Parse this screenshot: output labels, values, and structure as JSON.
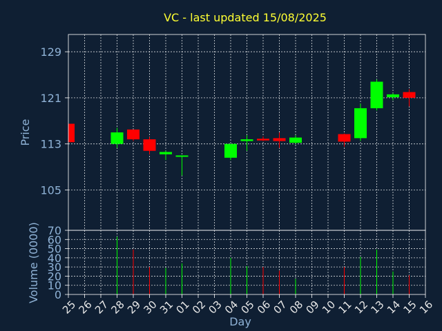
{
  "chart_data": [
    {
      "type": "candlestick",
      "title": "VC - last updated 15/08/2025",
      "ylabel": "Price",
      "ylim": [
        98,
        132
      ],
      "yticks": [
        105,
        113,
        121,
        129
      ],
      "grid": true,
      "categories": [
        "25",
        "26",
        "27",
        "28",
        "29",
        "30",
        "31",
        "01",
        "02",
        "03",
        "04",
        "05",
        "06",
        "07",
        "08",
        "09",
        "10",
        "11",
        "12",
        "13",
        "14",
        "15",
        "16"
      ],
      "ohlc": [
        {
          "day": "25",
          "open": 116.5,
          "high": 116.5,
          "low": 113.3,
          "close": 113.3
        },
        {
          "day": "28",
          "open": 113.0,
          "high": 115.8,
          "low": 112.3,
          "close": 115.0
        },
        {
          "day": "29",
          "open": 115.5,
          "high": 115.5,
          "low": 113.5,
          "close": 113.8
        },
        {
          "day": "30",
          "open": 113.8,
          "high": 114.2,
          "low": 111.2,
          "close": 111.8
        },
        {
          "day": "31",
          "open": 111.2,
          "high": 111.8,
          "low": 110.2,
          "close": 111.6
        },
        {
          "day": "01",
          "open": 110.8,
          "high": 111.0,
          "low": 107.5,
          "close": 111.0
        },
        {
          "day": "04",
          "open": 110.6,
          "high": 113.0,
          "low": 110.2,
          "close": 113.0
        },
        {
          "day": "05",
          "open": 113.5,
          "high": 114.5,
          "low": 111.8,
          "close": 113.8
        },
        {
          "day": "06",
          "open": 113.9,
          "high": 114.3,
          "low": 113.5,
          "close": 113.6
        },
        {
          "day": "07",
          "open": 114.0,
          "high": 115.0,
          "low": 112.3,
          "close": 113.5
        },
        {
          "day": "08",
          "open": 113.2,
          "high": 114.5,
          "low": 113.0,
          "close": 114.1
        },
        {
          "day": "11",
          "open": 114.7,
          "high": 114.8,
          "low": 112.5,
          "close": 113.4
        },
        {
          "day": "12",
          "open": 114.0,
          "high": 120.0,
          "low": 113.5,
          "close": 119.2
        },
        {
          "day": "13",
          "open": 119.2,
          "high": 124.2,
          "low": 118.8,
          "close": 123.8
        },
        {
          "day": "14",
          "open": 121.1,
          "high": 121.8,
          "low": 120.6,
          "close": 121.6
        },
        {
          "day": "15",
          "open": 122.0,
          "high": 122.5,
          "low": 119.5,
          "close": 121.0
        }
      ]
    },
    {
      "type": "bar",
      "ylabel": "Volume (0000)",
      "xlabel": "Day",
      "ylim": [
        0,
        70
      ],
      "yticks": [
        0,
        10,
        20,
        30,
        40,
        50,
        60,
        70
      ],
      "grid": true,
      "categories": [
        "25",
        "26",
        "27",
        "28",
        "29",
        "30",
        "31",
        "01",
        "02",
        "03",
        "04",
        "05",
        "06",
        "07",
        "08",
        "09",
        "10",
        "11",
        "12",
        "13",
        "14",
        "15",
        "16"
      ],
      "volumes": [
        {
          "day": "28",
          "value": 63,
          "color": "#00ff00"
        },
        {
          "day": "29",
          "value": 49,
          "color": "#ff0000"
        },
        {
          "day": "30",
          "value": 30,
          "color": "#ff0000"
        },
        {
          "day": "31",
          "value": 29,
          "color": "#00ff00"
        },
        {
          "day": "01",
          "value": 34,
          "color": "#00ff00"
        },
        {
          "day": "04",
          "value": 40,
          "color": "#00ff00"
        },
        {
          "day": "05",
          "value": 31,
          "color": "#00ff00"
        },
        {
          "day": "06",
          "value": 30,
          "color": "#ff0000"
        },
        {
          "day": "07",
          "value": 26,
          "color": "#ff0000"
        },
        {
          "day": "08",
          "value": 17,
          "color": "#00ff00"
        },
        {
          "day": "11",
          "value": 30,
          "color": "#ff0000"
        },
        {
          "day": "12",
          "value": 41,
          "color": "#00ff00"
        },
        {
          "day": "13",
          "value": 49,
          "color": "#00ff00"
        },
        {
          "day": "14",
          "value": 25,
          "color": "#00ff00"
        },
        {
          "day": "15",
          "value": 21,
          "color": "#ff0000"
        }
      ]
    }
  ],
  "colors": {
    "up": "#00ff00",
    "down": "#ff0000",
    "background": "#0f1f33",
    "title": "#ffff33",
    "axis_text": "#8fb2d6",
    "xtick_text": "#e8e8e8"
  }
}
